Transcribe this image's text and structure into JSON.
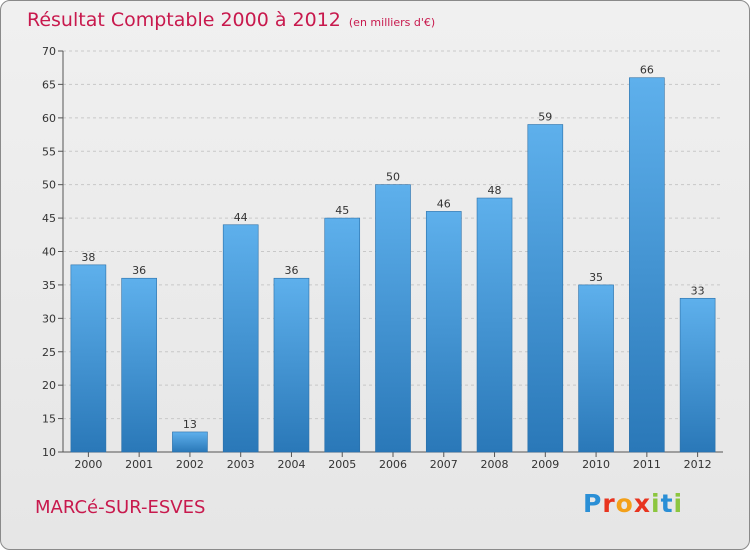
{
  "header": {
    "title": "Résultat Comptable 2000 à 2012",
    "subtitle": "(en milliers d'€)"
  },
  "footer": {
    "town": "MARCé-SUR-ESVES",
    "logo_letters": [
      {
        "ch": "P",
        "color": "#2a8fd6"
      },
      {
        "ch": "r",
        "color": "#e8341f"
      },
      {
        "ch": "o",
        "color": "#f3a019"
      },
      {
        "ch": "x",
        "color": "#e8341f"
      },
      {
        "ch": "i",
        "color": "#8cc63f"
      },
      {
        "ch": "t",
        "color": "#2a8fd6"
      },
      {
        "ch": "i",
        "color": "#8cc63f"
      }
    ]
  },
  "colors": {
    "bar_light": "#5eb0ec",
    "bar_dark": "#2a78b8",
    "title": "#c8194d"
  },
  "chart_data": {
    "type": "bar",
    "title": "Résultat Comptable 2000 à 2012",
    "subtitle": "(en milliers d'€)",
    "categories": [
      "2000",
      "2001",
      "2002",
      "2003",
      "2004",
      "2005",
      "2006",
      "2007",
      "2008",
      "2009",
      "2010",
      "2011",
      "2012"
    ],
    "values": [
      38,
      36,
      13,
      44,
      36,
      45,
      50,
      46,
      48,
      59,
      35,
      66,
      33
    ],
    "ylim": [
      10,
      70
    ],
    "yticks": [
      10,
      15,
      20,
      25,
      30,
      35,
      40,
      45,
      50,
      55,
      60,
      65,
      70
    ],
    "grid": true
  }
}
